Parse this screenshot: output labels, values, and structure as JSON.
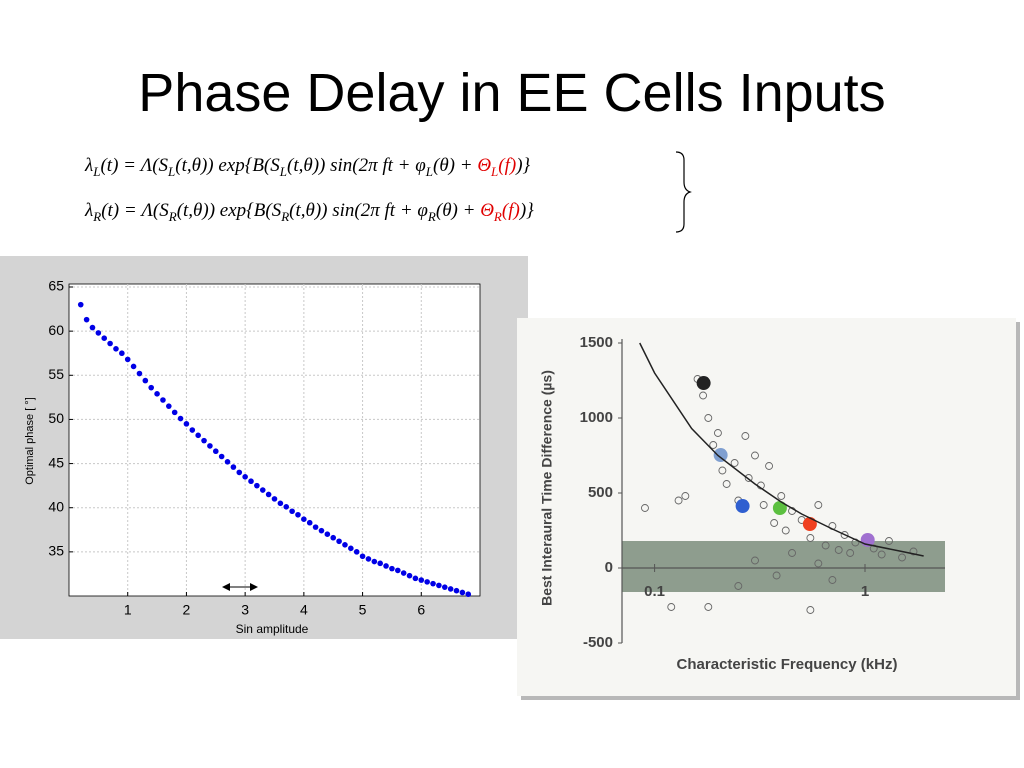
{
  "title": "Phase Delay in EE Cells Inputs",
  "equations": [
    {
      "parts": [
        {
          "text": "λ"
        },
        {
          "text": "L",
          "sub": true
        },
        {
          "text": "(t) = Λ(S"
        },
        {
          "text": "L",
          "sub": true
        },
        {
          "text": "(t,θ)) exp{B(S"
        },
        {
          "text": "L",
          "sub": true
        },
        {
          "text": "(t,θ)) sin(2π ft + φ"
        },
        {
          "text": "L",
          "sub": true
        },
        {
          "text": "(θ) + "
        },
        {
          "text": "Θ",
          "red": true
        },
        {
          "text": "L",
          "sub": true,
          "red": true
        },
        {
          "text": "(f)",
          "red": true
        },
        {
          "text": ")}"
        }
      ]
    },
    {
      "parts": [
        {
          "text": "λ"
        },
        {
          "text": "R",
          "sub": true
        },
        {
          "text": "(t) = Λ(S"
        },
        {
          "text": "R",
          "sub": true
        },
        {
          "text": "(t,θ)) exp{B(S"
        },
        {
          "text": "R",
          "sub": true
        },
        {
          "text": "(t,θ)) sin(2π ft + φ"
        },
        {
          "text": "R",
          "sub": true
        },
        {
          "text": "(θ) + "
        },
        {
          "text": "Θ",
          "red": true
        },
        {
          "text": "R",
          "sub": true,
          "red": true
        },
        {
          "text": "(f)",
          "red": true
        },
        {
          "text": ")}"
        }
      ]
    }
  ],
  "chart_data": [
    {
      "type": "scatter",
      "color": "#0000e6",
      "x": [
        0.2,
        0.3,
        0.4,
        0.5,
        0.6,
        0.7,
        0.8,
        0.9,
        1.0,
        1.1,
        1.2,
        1.3,
        1.4,
        1.5,
        1.6,
        1.7,
        1.8,
        1.9,
        2.0,
        2.1,
        2.2,
        2.3,
        2.4,
        2.5,
        2.6,
        2.7,
        2.8,
        2.9,
        3.0,
        3.1,
        3.2,
        3.3,
        3.4,
        3.5,
        3.6,
        3.7,
        3.8,
        3.9,
        4.0,
        4.1,
        4.2,
        4.3,
        4.4,
        4.5,
        4.6,
        4.7,
        4.8,
        4.9,
        5.0,
        5.1,
        5.2,
        5.3,
        5.4,
        5.5,
        5.6,
        5.7,
        5.8,
        5.9,
        6.0,
        6.1,
        6.2,
        6.3,
        6.4,
        6.5,
        6.6,
        6.7,
        6.8
      ],
      "values": [
        63.0,
        61.3,
        60.4,
        59.8,
        59.2,
        58.6,
        58.0,
        57.5,
        56.8,
        56.0,
        55.2,
        54.4,
        53.6,
        52.9,
        52.2,
        51.5,
        50.8,
        50.1,
        49.5,
        48.8,
        48.2,
        47.6,
        47.0,
        46.4,
        45.8,
        45.2,
        44.6,
        44.0,
        43.5,
        43.0,
        42.5,
        42.0,
        41.5,
        41.0,
        40.5,
        40.1,
        39.6,
        39.2,
        38.7,
        38.3,
        37.8,
        37.4,
        37.0,
        36.6,
        36.2,
        35.8,
        35.4,
        35.0,
        34.5,
        34.2,
        33.9,
        33.7,
        33.4,
        33.1,
        32.9,
        32.6,
        32.3,
        32.0,
        31.8,
        31.6,
        31.4,
        31.2,
        31.0,
        30.8,
        30.6,
        30.4,
        30.2
      ],
      "xlim": [
        0,
        7
      ],
      "ylim": [
        30,
        65
      ],
      "xticks": [
        1,
        2,
        3,
        4,
        5,
        6
      ],
      "yticks": [
        35,
        40,
        45,
        50,
        55,
        60,
        65
      ],
      "grid": true,
      "xlabel": "Sin amplitude",
      "ylabel": "Optimal phase [ °]"
    },
    {
      "type": "scatter",
      "xscale": "log",
      "xlim": [
        0.07,
        2.4
      ],
      "ylim": [
        -500,
        1500
      ],
      "xticks": [
        0.1,
        1
      ],
      "yticks": [
        -500,
        0,
        500,
        1000,
        1500
      ],
      "shaded_band": [
        -160,
        180
      ],
      "band_color": "#8e9d8e",
      "xlabel": "Characteristic Frequency (kHz)",
      "ylabel": "Best Interaural Time Difference (µs)",
      "series": [
        {
          "marker": "open",
          "color": "#666666",
          "x": [
            0.09,
            0.13,
            0.14,
            0.16,
            0.17,
            0.18,
            0.19,
            0.2,
            0.21,
            0.22,
            0.24,
            0.25,
            0.27,
            0.28,
            0.3,
            0.32,
            0.33,
            0.35,
            0.37,
            0.4,
            0.42,
            0.45,
            0.5,
            0.55,
            0.6,
            0.65,
            0.7,
            0.75,
            0.8,
            0.85,
            0.9,
            1.1,
            1.2,
            1.3,
            1.5,
            1.7,
            0.12,
            0.18,
            0.25,
            0.38,
            0.55,
            0.7,
            0.3,
            0.45,
            0.6
          ],
          "values": [
            400,
            450,
            480,
            1260,
            1150,
            1000,
            820,
            900,
            650,
            560,
            700,
            450,
            880,
            600,
            750,
            550,
            420,
            680,
            300,
            480,
            250,
            380,
            320,
            200,
            420,
            150,
            280,
            120,
            220,
            100,
            170,
            130,
            90,
            180,
            70,
            110,
            -260,
            -260,
            -120,
            -50,
            -280,
            -80,
            50,
            100,
            30
          ]
        },
        {
          "marker": "filled",
          "colors": [
            "#222222",
            "#7f9fd0",
            "#2f5fd0",
            "#5cc040",
            "#f04020",
            "#a070d0"
          ],
          "x": [
            0.171,
            0.206,
            0.262,
            0.394,
            0.547,
            1.03
          ],
          "values": [
            1233,
            753,
            413,
            400,
            293,
            187
          ]
        },
        {
          "marker": "line",
          "color": "#222222",
          "x": [
            0.085,
            0.1,
            0.15,
            0.2,
            0.3,
            0.4,
            0.5,
            0.7,
            1,
            1.5,
            1.9
          ],
          "values": [
            1500,
            1300,
            930,
            750,
            560,
            440,
            360,
            260,
            160,
            110,
            80
          ]
        }
      ]
    }
  ]
}
